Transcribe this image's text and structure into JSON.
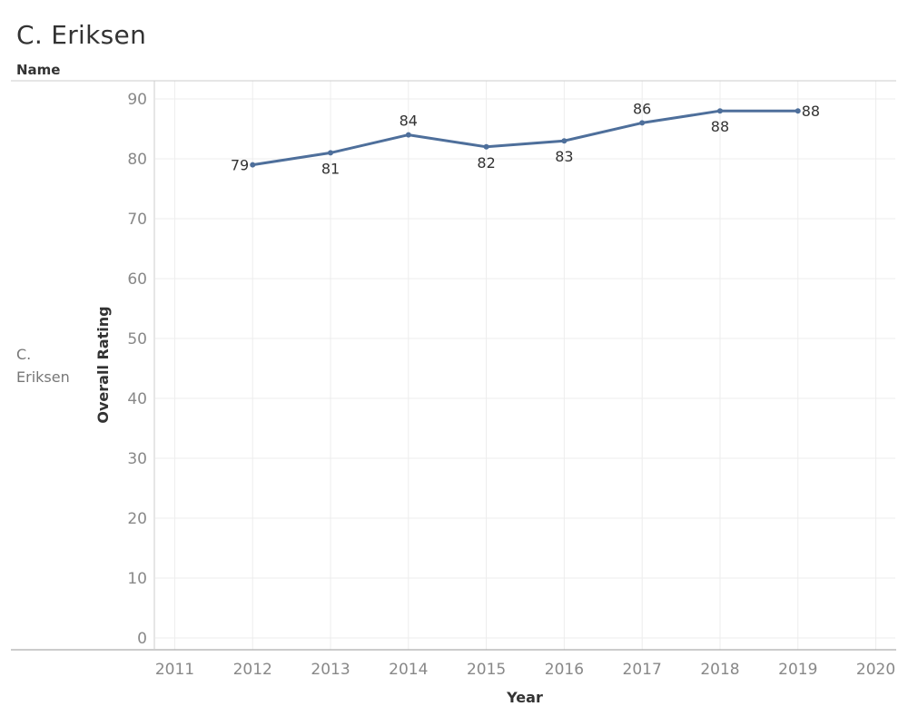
{
  "title": "C. Eriksen",
  "row_header": "Name",
  "row_label": "C.\nEriksen",
  "chart_data": {
    "type": "line",
    "xlabel": "Year",
    "ylabel": "Overall Rating",
    "xlim": [
      2011,
      2020
    ],
    "ylim": [
      0,
      90
    ],
    "x_ticks": [
      2011,
      2012,
      2013,
      2014,
      2015,
      2016,
      2017,
      2018,
      2019,
      2020
    ],
    "y_ticks": [
      0,
      10,
      20,
      30,
      40,
      50,
      60,
      70,
      80,
      90
    ],
    "grid": true,
    "color": "#4e6f9b",
    "series": [
      {
        "x": [
          2012,
          2013,
          2014,
          2015,
          2016,
          2017,
          2018,
          2019
        ],
        "values": [
          79,
          81,
          84,
          82,
          83,
          86,
          88,
          88
        ]
      }
    ]
  }
}
